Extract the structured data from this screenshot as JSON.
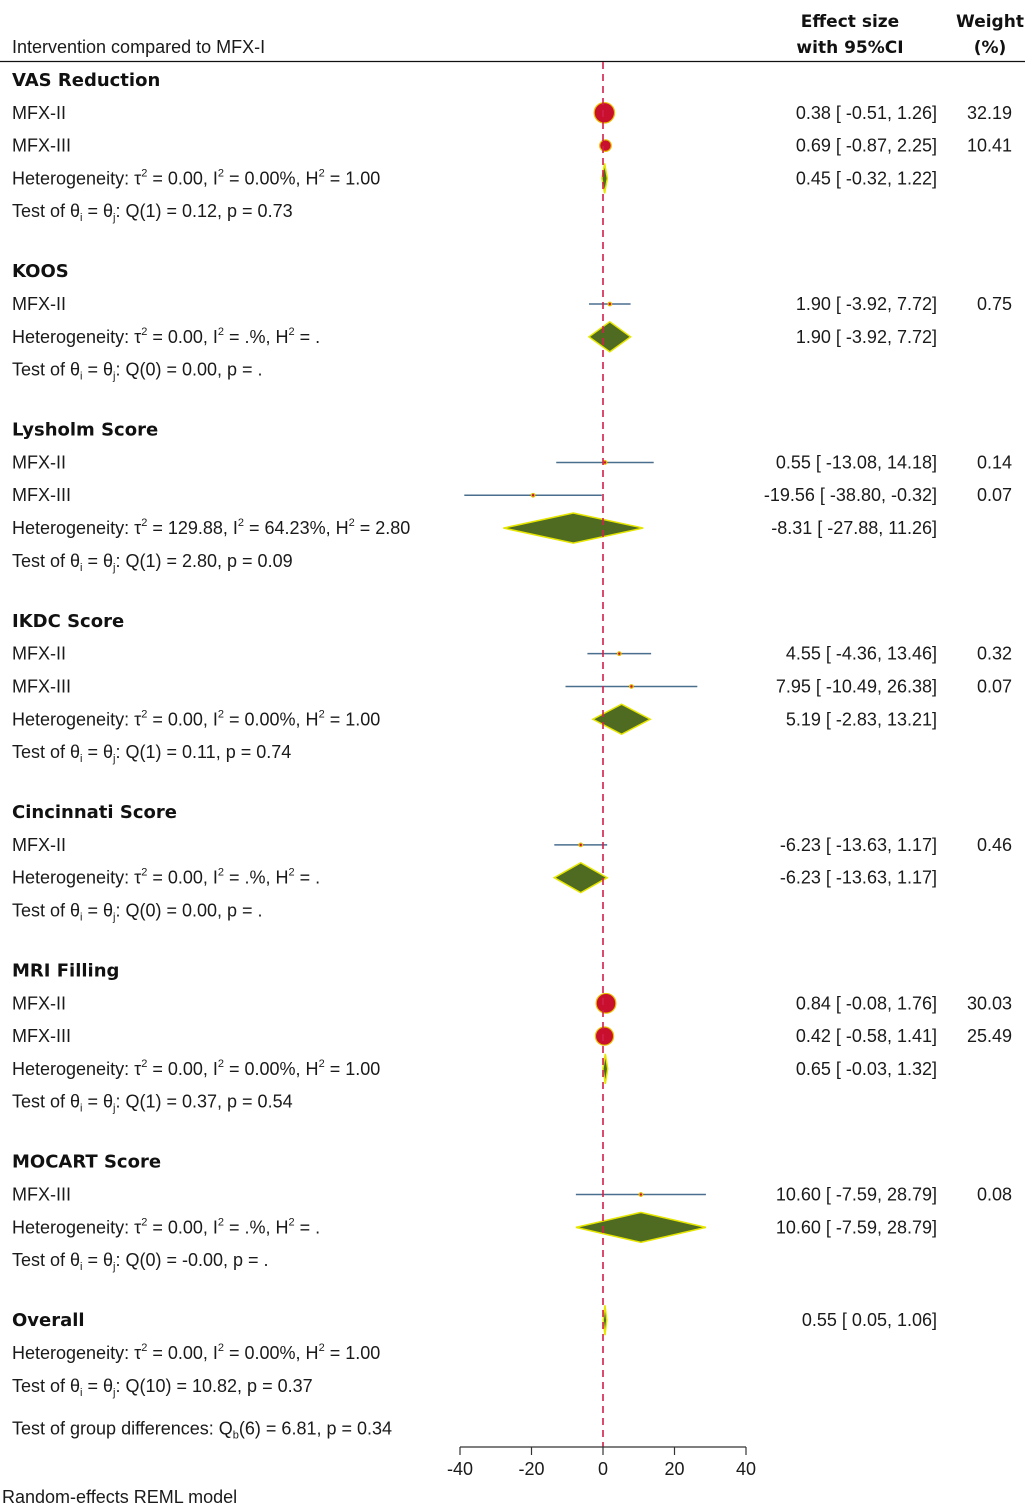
{
  "header": {
    "left_label": "Intervention compared to MFX-I",
    "effect_line1": "Effect size",
    "effect_line2": "with 95%CI",
    "weight_line1": "Weight",
    "weight_line2": "(%)"
  },
  "footer": {
    "model_label": "Random-effects REML model"
  },
  "chart_data": {
    "type": "forest",
    "null_line": 0,
    "xlim": [
      -40,
      40
    ],
    "ticks": [
      -40,
      -20,
      0,
      20,
      40
    ],
    "colors": {
      "marker": "#c8102e",
      "marker_edge": "#e8c000",
      "ci": "#4a6e8e",
      "diamond": "#4f6b22",
      "diamond_edge": "#e6e600",
      "null_line": "#d0204a"
    },
    "groups": [
      {
        "name": "VAS Reduction",
        "studies": [
          {
            "label": "MFX-II",
            "est": 0.38,
            "lo": -0.51,
            "hi": 1.26,
            "text": "0.38 [ -0.51,  1.26]",
            "weight": "32.19",
            "w": 32.19
          },
          {
            "label": "MFX-III",
            "est": 0.69,
            "lo": -0.87,
            "hi": 2.25,
            "text": "0.69 [ -0.87,  2.25]",
            "weight": "10.41",
            "w": 10.41
          }
        ],
        "summary": {
          "est": 0.45,
          "lo": -0.32,
          "hi": 1.22,
          "text": "0.45 [ -0.32,  1.22]"
        },
        "het": {
          "tau2": "0.00",
          "i2": "0.00%",
          "h2": "1.00"
        },
        "test": {
          "q": "Q(1) = 0.12",
          "p": "p = 0.73"
        }
      },
      {
        "name": "KOOS",
        "studies": [
          {
            "label": "MFX-II",
            "est": 1.9,
            "lo": -3.92,
            "hi": 7.72,
            "text": "1.90 [ -3.92,  7.72]",
            "weight": "0.75",
            "w": 0.75
          }
        ],
        "summary": {
          "est": 1.9,
          "lo": -3.92,
          "hi": 7.72,
          "text": "1.90 [ -3.92,  7.72]"
        },
        "het": {
          "tau2": "0.00",
          "i2": ".%",
          "h2": "."
        },
        "test": {
          "q": "Q(0) = 0.00",
          "p": "p = ."
        }
      },
      {
        "name": "Lysholm Score",
        "studies": [
          {
            "label": "MFX-II",
            "est": 0.55,
            "lo": -13.08,
            "hi": 14.18,
            "text": "0.55 [ -13.08,  14.18]",
            "weight": "0.14",
            "w": 0.14
          },
          {
            "label": "MFX-III",
            "est": -19.56,
            "lo": -38.8,
            "hi": -0.32,
            "text": "-19.56 [ -38.80,  -0.32]",
            "weight": "0.07",
            "w": 0.07
          }
        ],
        "summary": {
          "est": -8.31,
          "lo": -27.88,
          "hi": 11.26,
          "text": "-8.31 [ -27.88,  11.26]"
        },
        "het": {
          "tau2": "129.88",
          "i2": "64.23%",
          "h2": "2.80"
        },
        "test": {
          "q": "Q(1) = 2.80",
          "p": "p = 0.09"
        }
      },
      {
        "name": "IKDC Score",
        "studies": [
          {
            "label": "MFX-II",
            "est": 4.55,
            "lo": -4.36,
            "hi": 13.46,
            "text": "4.55 [ -4.36,  13.46]",
            "weight": "0.32",
            "w": 0.32
          },
          {
            "label": "MFX-III",
            "est": 7.95,
            "lo": -10.49,
            "hi": 26.38,
            "text": "7.95 [ -10.49,  26.38]",
            "weight": "0.07",
            "w": 0.07
          }
        ],
        "summary": {
          "est": 5.19,
          "lo": -2.83,
          "hi": 13.21,
          "text": "5.19 [ -2.83,  13.21]"
        },
        "het": {
          "tau2": "0.00",
          "i2": "0.00%",
          "h2": "1.00"
        },
        "test": {
          "q": "Q(1) = 0.11",
          "p": "p = 0.74"
        }
      },
      {
        "name": "Cincinnati Score",
        "studies": [
          {
            "label": "MFX-II",
            "est": -6.23,
            "lo": -13.63,
            "hi": 1.17,
            "text": "-6.23 [ -13.63,  1.17]",
            "weight": "0.46",
            "w": 0.46
          }
        ],
        "summary": {
          "est": -6.23,
          "lo": -13.63,
          "hi": 1.17,
          "text": "-6.23 [ -13.63,  1.17]"
        },
        "het": {
          "tau2": "0.00",
          "i2": ".%",
          "h2": "."
        },
        "test": {
          "q": "Q(0) = 0.00",
          "p": "p = ."
        }
      },
      {
        "name": "MRI Filling",
        "studies": [
          {
            "label": "MFX-II",
            "est": 0.84,
            "lo": -0.08,
            "hi": 1.76,
            "text": "0.84 [ -0.08,  1.76]",
            "weight": "30.03",
            "w": 30.03
          },
          {
            "label": "MFX-III",
            "est": 0.42,
            "lo": -0.58,
            "hi": 1.41,
            "text": "0.42 [ -0.58,  1.41]",
            "weight": "25.49",
            "w": 25.49
          }
        ],
        "summary": {
          "est": 0.65,
          "lo": -0.03,
          "hi": 1.32,
          "text": "0.65 [ -0.03,  1.32]"
        },
        "het": {
          "tau2": "0.00",
          "i2": "0.00%",
          "h2": "1.00"
        },
        "test": {
          "q": "Q(1) = 0.37",
          "p": "p = 0.54"
        }
      },
      {
        "name": "MOCART Score",
        "studies": [
          {
            "label": "MFX-III",
            "est": 10.6,
            "lo": -7.59,
            "hi": 28.79,
            "text": "10.60 [ -7.59,  28.79]",
            "weight": "0.08",
            "w": 0.08
          }
        ],
        "summary": {
          "est": 10.6,
          "lo": -7.59,
          "hi": 28.79,
          "text": "10.60 [ -7.59,  28.79]"
        },
        "het": {
          "tau2": "0.00",
          "i2": ".%",
          "h2": "."
        },
        "test": {
          "q": "Q(0) = -0.00",
          "p": "p = ."
        }
      }
    ],
    "overall": {
      "name": "Overall",
      "est": 0.55,
      "lo": 0.05,
      "hi": 1.06,
      "text": "0.55 [  0.05,  1.06]",
      "het": {
        "tau2": "0.00",
        "i2": "0.00%",
        "h2": "1.00"
      },
      "test": {
        "q": "Q(10) = 10.82",
        "p": "p = 0.37"
      }
    },
    "group_diff": {
      "stat": "6.81",
      "df": "6",
      "p": "p = 0.34"
    }
  }
}
